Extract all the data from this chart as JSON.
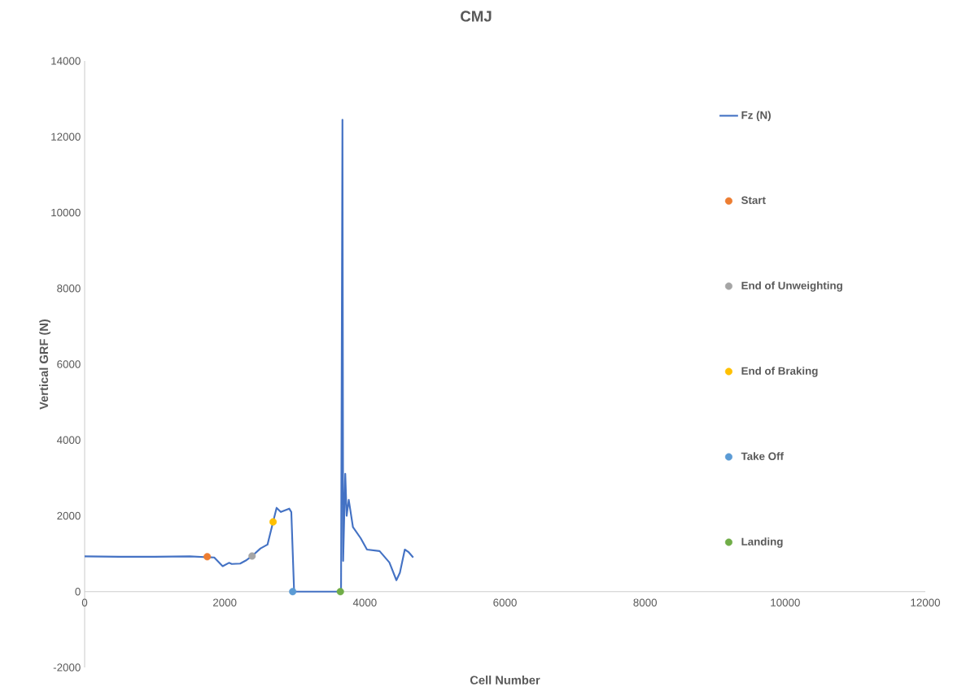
{
  "chart_data": {
    "type": "line",
    "title": "CMJ",
    "xlabel": "Cell Number",
    "ylabel": "Vertical GRF (N)",
    "xlim": [
      0,
      12000
    ],
    "ylim": [
      -2000,
      14000
    ],
    "xticks": [
      0,
      2000,
      4000,
      6000,
      8000,
      10000,
      12000
    ],
    "yticks": [
      -2000,
      0,
      2000,
      4000,
      6000,
      8000,
      10000,
      12000,
      14000
    ],
    "legend": "right",
    "grid": false,
    "series": [
      {
        "name": "Fz (N)",
        "color": "#4472c4",
        "marker": "none",
        "x": [
          0,
          500,
          1000,
          1500,
          1850,
          1970,
          2060,
          2100,
          2220,
          2300,
          2390,
          2510,
          2610,
          2690,
          2740,
          2800,
          2920,
          2950,
          2990,
          3300,
          3660,
          3680,
          3690,
          3720,
          3740,
          3770,
          3830,
          3940,
          4030,
          4210,
          4350,
          4450,
          4500,
          4570,
          4620,
          4690
        ],
        "values": [
          930,
          920,
          920,
          930,
          900,
          670,
          760,
          730,
          740,
          820,
          940,
          1140,
          1240,
          1840,
          2210,
          2100,
          2190,
          2100,
          0,
          0,
          0,
          12450,
          810,
          3110,
          2000,
          2420,
          1700,
          1410,
          1110,
          1070,
          770,
          300,
          500,
          1110,
          1050,
          900
        ]
      },
      {
        "name": "Start",
        "type": "scatter",
        "marker": "circle",
        "color": "#ed7d31",
        "x": [
          1750
        ],
        "values": [
          920
        ]
      },
      {
        "name": "End of Unweighting",
        "type": "scatter",
        "marker": "circle",
        "color": "#a5a5a5",
        "x": [
          2390
        ],
        "values": [
          940
        ]
      },
      {
        "name": "End of Braking",
        "type": "scatter",
        "marker": "circle",
        "color": "#ffc000",
        "x": [
          2690
        ],
        "values": [
          1840
        ]
      },
      {
        "name": "Take Off",
        "type": "scatter",
        "marker": "circle",
        "color": "#5b9bd5",
        "x": [
          2970
        ],
        "values": [
          0
        ]
      },
      {
        "name": "Landing",
        "type": "scatter",
        "marker": "circle",
        "color": "#70ad47",
        "x": [
          3650
        ],
        "values": [
          0
        ]
      }
    ]
  }
}
